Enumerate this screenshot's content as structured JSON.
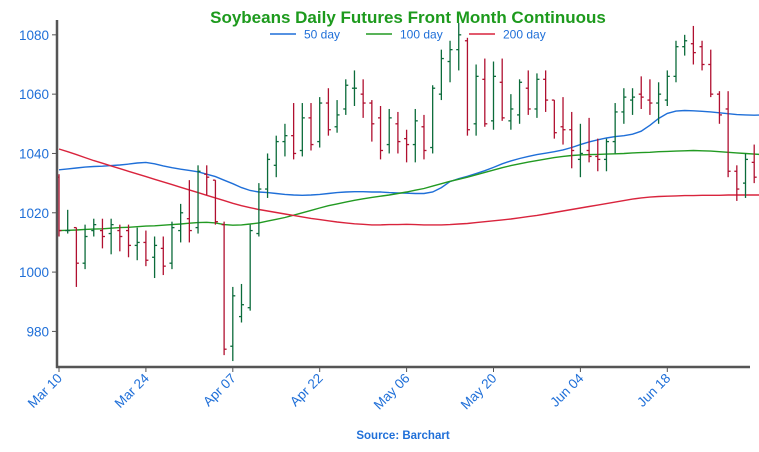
{
  "chart_data": {
    "type": "bar",
    "subtype": "ohlc",
    "title": "Soybeans Daily Futures Front Month Continuous",
    "source": "Source: Barchart",
    "ylim": [
      968,
      1085
    ],
    "y_ticks": [
      980,
      1000,
      1020,
      1040,
      1060,
      1080
    ],
    "x_ticks": [
      {
        "label": "Mar 10",
        "index": 0
      },
      {
        "label": "Mar 24",
        "index": 10
      },
      {
        "label": "Apr 07",
        "index": 20
      },
      {
        "label": "Apr 22",
        "index": 30
      },
      {
        "label": "May 06",
        "index": 40
      },
      {
        "label": "May 20",
        "index": 50
      },
      {
        "label": "Jun 04",
        "index": 60
      },
      {
        "label": "Jun 18",
        "index": 70
      }
    ],
    "grid": false,
    "legend_position": "top",
    "colors": {
      "up": "#0b6b3a",
      "down": "#b01030",
      "ma50": "#1f6fd8",
      "ma100": "#229a22",
      "ma200": "#d9243d",
      "title": "#1d9a1d",
      "labels": "#1f6fd8"
    },
    "ohlc": [
      [
        1032,
        1033,
        1012,
        1014
      ],
      [
        1014,
        1021,
        1013,
        1014
      ],
      [
        1015,
        1015,
        995,
        1003
      ],
      [
        1003,
        1016,
        1001,
        1012
      ],
      [
        1014,
        1018,
        1012,
        1016
      ],
      [
        1014,
        1018,
        1008,
        1012
      ],
      [
        1013,
        1018,
        1006,
        1016
      ],
      [
        1014,
        1016,
        1007,
        1012
      ],
      [
        1014,
        1016,
        1005,
        1009
      ],
      [
        1009,
        1015,
        1004,
        1010
      ],
      [
        1010,
        1014,
        1002,
        1004
      ],
      [
        1005,
        1012,
        998,
        1009
      ],
      [
        1008,
        1012,
        999,
        1002
      ],
      [
        1003,
        1017,
        1001,
        1015
      ],
      [
        1014,
        1023,
        1010,
        1020
      ],
      [
        1018,
        1031,
        1010,
        1014
      ],
      [
        1015,
        1036,
        1013,
        1034
      ],
      [
        1033,
        1036,
        1026,
        1032
      ],
      [
        1031,
        1031,
        1016,
        1017
      ],
      [
        1016,
        1017,
        972,
        974
      ],
      [
        975,
        995,
        970,
        992
      ],
      [
        985,
        996,
        983,
        989
      ],
      [
        988,
        1016,
        987,
        1014
      ],
      [
        1013,
        1030,
        1012,
        1028
      ],
      [
        1028,
        1040,
        1025,
        1038
      ],
      [
        1036,
        1046,
        1032,
        1044
      ],
      [
        1044,
        1050,
        1039,
        1046
      ],
      [
        1046,
        1057,
        1038,
        1040
      ],
      [
        1041,
        1057,
        1039,
        1052
      ],
      [
        1052,
        1057,
        1041,
        1043
      ],
      [
        1044,
        1059,
        1042,
        1057
      ],
      [
        1057,
        1062,
        1046,
        1048
      ],
      [
        1049,
        1058,
        1047,
        1053
      ],
      [
        1055,
        1065,
        1053,
        1063
      ],
      [
        1062,
        1068,
        1056,
        1062
      ],
      [
        1060,
        1065,
        1052,
        1057
      ],
      [
        1057,
        1058,
        1044,
        1050
      ],
      [
        1052,
        1056,
        1038,
        1041
      ],
      [
        1043,
        1055,
        1040,
        1052
      ],
      [
        1050,
        1054,
        1040,
        1044
      ],
      [
        1045,
        1048,
        1037,
        1043
      ],
      [
        1043,
        1055,
        1037,
        1051
      ],
      [
        1049,
        1053,
        1038,
        1041
      ],
      [
        1042,
        1063,
        1040,
        1062
      ],
      [
        1060,
        1075,
        1058,
        1072
      ],
      [
        1071,
        1078,
        1064,
        1075
      ],
      [
        1075,
        1084,
        1068,
        1080
      ],
      [
        1078,
        1079,
        1046,
        1048
      ],
      [
        1050,
        1070,
        1046,
        1066
      ],
      [
        1065,
        1072,
        1049,
        1050
      ],
      [
        1051,
        1071,
        1048,
        1066
      ],
      [
        1064,
        1072,
        1051,
        1052
      ],
      [
        1051,
        1060,
        1048,
        1055
      ],
      [
        1053,
        1065,
        1050,
        1064
      ],
      [
        1062,
        1068,
        1053,
        1055
      ],
      [
        1055,
        1067,
        1052,
        1065
      ],
      [
        1065,
        1068,
        1054,
        1058
      ],
      [
        1058,
        1058,
        1045,
        1047
      ],
      [
        1049,
        1059,
        1043,
        1048
      ],
      [
        1048,
        1054,
        1035,
        1041
      ],
      [
        1038,
        1050,
        1032,
        1040
      ],
      [
        1041,
        1052,
        1037,
        1039
      ],
      [
        1039,
        1045,
        1034,
        1038
      ],
      [
        1038,
        1045,
        1034,
        1044
      ],
      [
        1044,
        1057,
        1040,
        1054
      ],
      [
        1054,
        1062,
        1050,
        1059
      ],
      [
        1058,
        1062,
        1053,
        1059
      ],
      [
        1060,
        1066,
        1055,
        1059
      ],
      [
        1058,
        1065,
        1053,
        1057
      ],
      [
        1057,
        1064,
        1050,
        1060
      ],
      [
        1058,
        1068,
        1056,
        1066
      ],
      [
        1066,
        1078,
        1064,
        1076
      ],
      [
        1076,
        1080,
        1073,
        1078
      ],
      [
        1077,
        1083,
        1070,
        1074
      ],
      [
        1076,
        1078,
        1068,
        1070
      ],
      [
        1070,
        1075,
        1059,
        1060
      ],
      [
        1060,
        1061,
        1050,
        1053
      ],
      [
        1055,
        1061,
        1032,
        1034
      ],
      [
        1034,
        1036,
        1024,
        1028
      ],
      [
        1030,
        1040,
        1025,
        1038
      ],
      [
        1037,
        1043,
        1030,
        1032
      ],
      [
        1032,
        1034,
        1017,
        1030
      ],
      [
        1032,
        1054,
        1028,
        1053
      ]
    ],
    "series": [
      {
        "name": "50 day",
        "color": "#1f6fd8",
        "values": [
          1034.5,
          1034.8,
          1035.1,
          1035.4,
          1035.6,
          1035.7,
          1035.9,
          1036.1,
          1036.4,
          1036.8,
          1037.0,
          1036.5,
          1035.8,
          1035.2,
          1034.7,
          1034.3,
          1033.8,
          1033.0,
          1032.2,
          1031.0,
          1029.8,
          1028.5,
          1027.5,
          1027.0,
          1026.8,
          1026.5,
          1026.2,
          1026.0,
          1025.9,
          1026.0,
          1026.2,
          1026.5,
          1026.8,
          1027.0,
          1027.1,
          1027.1,
          1027.0,
          1027.0,
          1026.8,
          1026.7,
          1026.6,
          1026.5,
          1026.5,
          1027.0,
          1028.5,
          1030.5,
          1031.5,
          1032.3,
          1033.2,
          1034.2,
          1035.3,
          1036.5,
          1037.5,
          1038.3,
          1039.0,
          1039.6,
          1040.1,
          1040.6,
          1041.2,
          1042.0,
          1043.0,
          1043.9,
          1044.6,
          1045.2,
          1045.7,
          1046.0,
          1046.5,
          1047.5,
          1049.5,
          1051.8,
          1053.5,
          1054.3,
          1054.5,
          1054.4,
          1054.2,
          1054.0,
          1053.7,
          1053.4,
          1053.1,
          1053.0,
          1052.9,
          1053.0,
          1053.2
        ]
      },
      {
        "name": "100 day",
        "color": "#229a22",
        "values": [
          1014.0,
          1014.1,
          1014.2,
          1014.4,
          1014.5,
          1014.6,
          1014.8,
          1015.0,
          1015.1,
          1015.3,
          1015.5,
          1015.6,
          1015.8,
          1016.0,
          1016.2,
          1016.5,
          1016.7,
          1016.8,
          1016.6,
          1016.0,
          1015.8,
          1015.9,
          1016.2,
          1016.6,
          1017.2,
          1017.8,
          1018.4,
          1019.2,
          1020.0,
          1020.8,
          1021.6,
          1022.4,
          1023.0,
          1023.6,
          1024.2,
          1024.7,
          1025.2,
          1025.6,
          1026.0,
          1026.5,
          1027.0,
          1027.6,
          1028.2,
          1029.0,
          1029.8,
          1030.6,
          1031.3,
          1032.0,
          1032.8,
          1033.6,
          1034.4,
          1035.2,
          1035.9,
          1036.5,
          1037.1,
          1037.6,
          1038.1,
          1038.6,
          1039.0,
          1039.3,
          1039.5,
          1039.6,
          1039.7,
          1039.8,
          1039.9,
          1040.0,
          1040.2,
          1040.3,
          1040.4,
          1040.6,
          1040.7,
          1040.8,
          1040.9,
          1041.0,
          1040.9,
          1040.8,
          1040.6,
          1040.4,
          1040.2,
          1040.0,
          1039.8,
          1039.6,
          1039.5
        ]
      },
      {
        "name": "200 day",
        "color": "#d9243d",
        "values": [
          1041.5,
          1040.6,
          1039.6,
          1038.6,
          1037.6,
          1036.7,
          1035.8,
          1034.9,
          1034.0,
          1033.1,
          1032.2,
          1031.3,
          1030.4,
          1029.5,
          1028.6,
          1027.7,
          1026.8,
          1025.9,
          1025.0,
          1024.1,
          1023.2,
          1022.4,
          1021.7,
          1021.1,
          1020.6,
          1020.1,
          1019.6,
          1019.1,
          1018.6,
          1018.1,
          1017.7,
          1017.3,
          1016.9,
          1016.6,
          1016.3,
          1016.1,
          1015.9,
          1015.9,
          1016.0,
          1016.0,
          1016.1,
          1016.0,
          1015.9,
          1015.9,
          1015.9,
          1016.0,
          1016.2,
          1016.4,
          1016.7,
          1017.0,
          1017.3,
          1017.6,
          1017.9,
          1018.3,
          1018.7,
          1019.1,
          1019.6,
          1020.1,
          1020.6,
          1021.1,
          1021.6,
          1022.1,
          1022.6,
          1023.1,
          1023.6,
          1024.1,
          1024.6,
          1025.0,
          1025.3,
          1025.5,
          1025.6,
          1025.7,
          1025.8,
          1025.8,
          1025.9,
          1025.9,
          1025.9,
          1026.0,
          1026.0,
          1026.0,
          1026.0,
          1026.0,
          1026.0
        ]
      }
    ]
  }
}
